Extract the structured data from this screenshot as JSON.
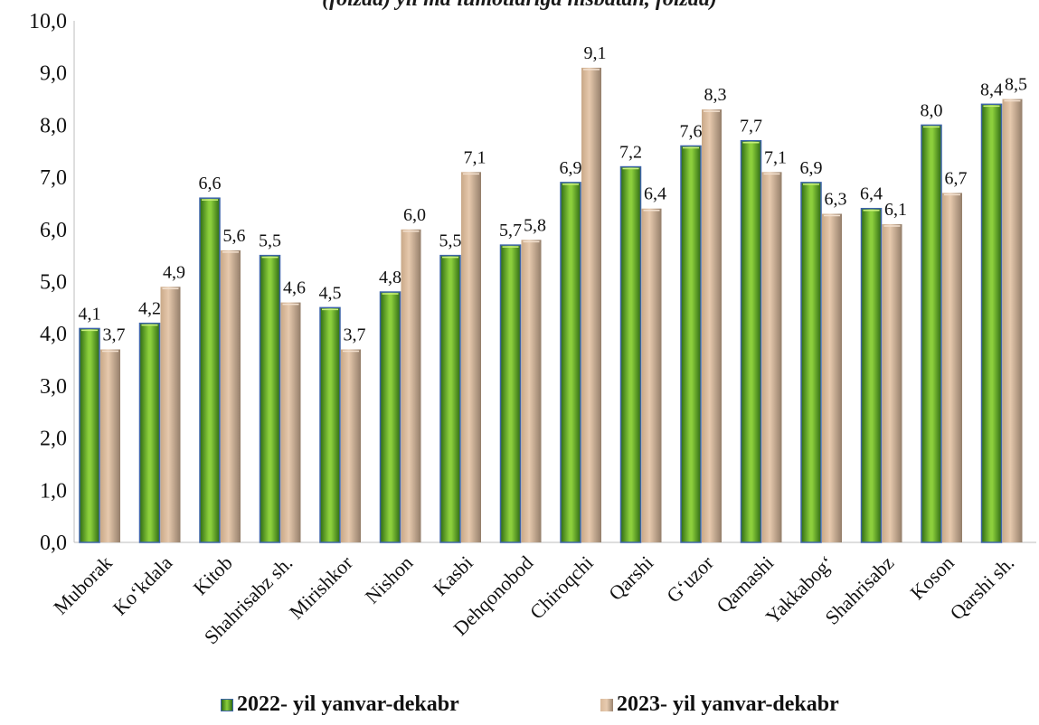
{
  "title_partial": "(foizda) yil ma'lumotlariga nisbatan, foizda)",
  "chart_data": {
    "type": "bar",
    "categories": [
      "Muborak",
      "Ko‘kdala",
      "Kitob",
      "Shahrisabz sh.",
      "Mirishkor",
      "Nishon",
      "Kasbi",
      "Dehqonobod",
      "Chiroqchi",
      "Qarshi",
      "G‘uzor",
      "Qamashi",
      "Yakkabog‘",
      "Shahrisabz",
      "Koson",
      "Qarshi sh."
    ],
    "series": [
      {
        "name": "2022- yil yanvar-dekabr",
        "values": [
          4.1,
          4.2,
          6.6,
          5.5,
          4.5,
          4.8,
          5.5,
          5.7,
          6.9,
          7.2,
          7.6,
          7.7,
          6.9,
          6.4,
          8.0,
          8.4
        ],
        "color": "#6aaa2a"
      },
      {
        "name": "2023- yil yanvar-dekabr",
        "values": [
          3.7,
          4.9,
          5.6,
          4.6,
          3.7,
          6.0,
          7.1,
          5.8,
          9.1,
          6.4,
          8.3,
          7.1,
          6.3,
          6.1,
          6.7,
          8.5
        ],
        "color": "#c8a888"
      }
    ],
    "ylim": [
      0,
      10
    ],
    "yticks": [
      "0,0",
      "1,0",
      "2,0",
      "3,0",
      "4,0",
      "5,0",
      "6,0",
      "7,0",
      "8,0",
      "9,0",
      "10,0"
    ],
    "grid": false,
    "legend_position": "bottom"
  }
}
